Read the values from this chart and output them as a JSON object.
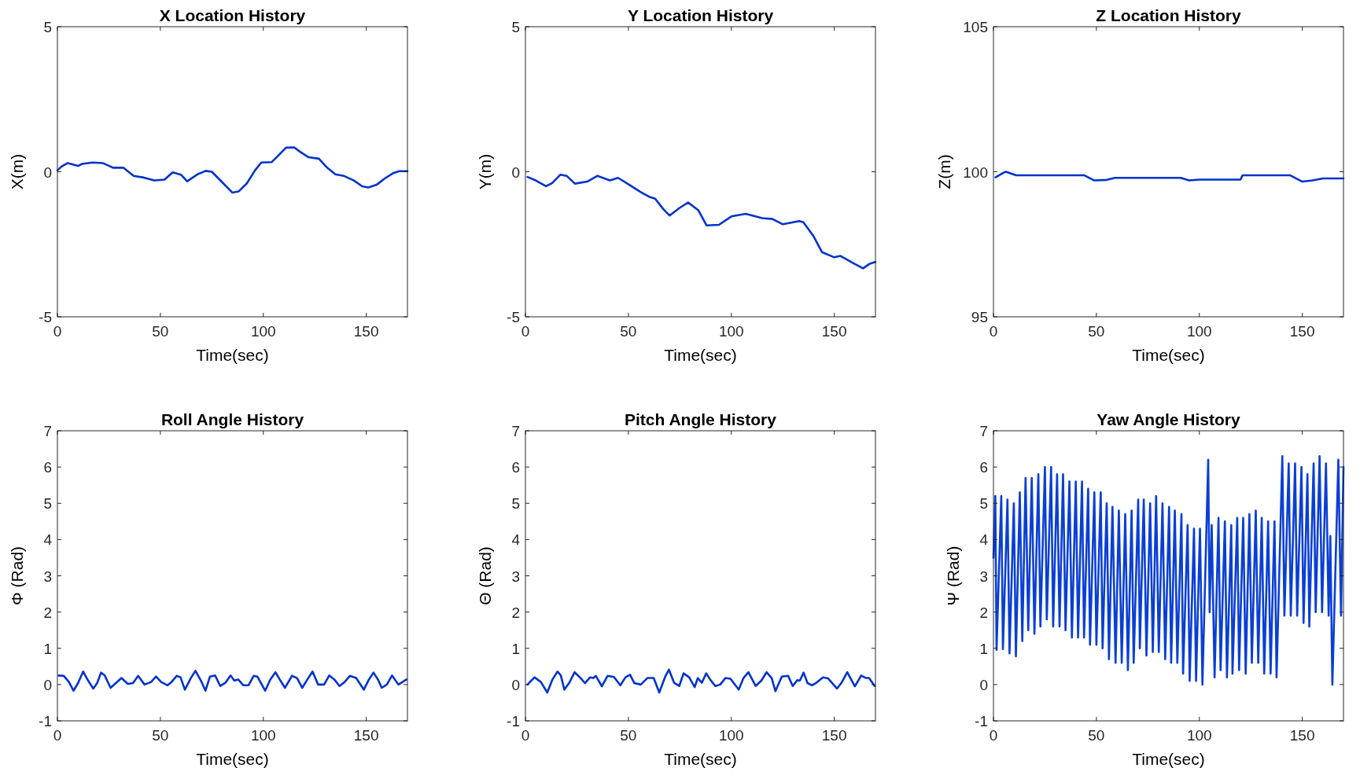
{
  "chart_data": [
    {
      "type": "line",
      "title": "X Location History",
      "xlabel": "Time(sec)",
      "ylabel": "X(m)",
      "xlim": [
        0,
        170
      ],
      "ylim": [
        -5,
        5
      ],
      "xticks": [
        0,
        50,
        100,
        150
      ],
      "yticks": [
        -5,
        0,
        5
      ],
      "series": [
        {
          "color": "#0033cc",
          "x": [
            0,
            2,
            5,
            10,
            12,
            17,
            22,
            27,
            32,
            37,
            42,
            47,
            52,
            56,
            60,
            63,
            68,
            72,
            75,
            80,
            85,
            88,
            92,
            96,
            99,
            104,
            107,
            111,
            115,
            118,
            122,
            127,
            131,
            135,
            139,
            144,
            148,
            151,
            155,
            159,
            163,
            166,
            170
          ],
          "values": [
            0.05,
            0.18,
            0.3,
            0.2,
            0.27,
            0.32,
            0.3,
            0.14,
            0.14,
            -0.14,
            -0.2,
            -0.3,
            -0.27,
            -0.02,
            -0.1,
            -0.33,
            -0.09,
            0.03,
            0,
            -0.36,
            -0.72,
            -0.68,
            -0.4,
            0.05,
            0.32,
            0.33,
            0.54,
            0.83,
            0.84,
            0.68,
            0.5,
            0.45,
            0.14,
            -0.09,
            -0.14,
            -0.3,
            -0.5,
            -0.54,
            -0.45,
            -0.23,
            -0.05,
            0.02,
            0.02
          ]
        }
      ]
    },
    {
      "type": "line",
      "title": "Y Location History",
      "xlabel": "Time(sec)",
      "ylabel": "Y(m)",
      "xlim": [
        0,
        170
      ],
      "ylim": [
        -5,
        5
      ],
      "xticks": [
        0,
        50,
        100,
        150
      ],
      "yticks": [
        -5,
        0,
        5
      ],
      "series": [
        {
          "color": "#0033cc",
          "x": [
            1,
            5,
            10,
            13,
            17,
            20,
            24,
            30,
            35,
            41,
            45,
            50,
            56,
            60,
            63,
            67,
            70,
            75,
            79,
            84,
            88,
            94,
            100,
            107,
            115,
            120,
            125,
            133,
            135,
            140,
            144,
            150,
            153,
            160,
            164,
            167,
            170
          ],
          "values": [
            -0.18,
            -0.3,
            -0.5,
            -0.39,
            -0.1,
            -0.14,
            -0.41,
            -0.34,
            -0.14,
            -0.3,
            -0.21,
            -0.43,
            -0.7,
            -0.86,
            -0.93,
            -1.29,
            -1.51,
            -1.24,
            -1.06,
            -1.33,
            -1.85,
            -1.83,
            -1.54,
            -1.45,
            -1.6,
            -1.63,
            -1.81,
            -1.7,
            -1.74,
            -2.23,
            -2.77,
            -2.95,
            -2.9,
            -3.18,
            -3.33,
            -3.18,
            -3.11
          ]
        }
      ]
    },
    {
      "type": "line",
      "title": "Z Location History",
      "xlabel": "Time(sec)",
      "ylabel": "Z(m)",
      "xlim": [
        0,
        170
      ],
      "ylim": [
        95,
        105
      ],
      "xticks": [
        0,
        50,
        100,
        150
      ],
      "yticks": [
        95,
        100,
        105
      ],
      "series": [
        {
          "color": "#0033cc",
          "x": [
            1,
            5,
            6,
            11,
            44,
            49,
            55,
            59,
            91,
            95,
            100,
            120,
            121,
            144,
            150,
            155,
            160,
            170
          ],
          "values": [
            99.81,
            99.97,
            100,
            99.88,
            99.88,
            99.7,
            99.72,
            99.79,
            99.79,
            99.7,
            99.73,
            99.73,
            99.88,
            99.88,
            99.66,
            99.7,
            99.77,
            99.77
          ]
        }
      ]
    },
    {
      "type": "line",
      "title": "Roll Angle History",
      "xlabel": "Time(sec)",
      "ylabel": "Φ (Rad)",
      "xlim": [
        0,
        170
      ],
      "ylim": [
        -1,
        7
      ],
      "xticks": [
        0,
        50,
        100,
        150
      ],
      "yticks": [
        -1,
        0,
        1,
        2,
        3,
        4,
        5,
        6,
        7
      ],
      "series": [
        {
          "color": "#0033cc",
          "x": [
            0.6,
            3.1,
            5.6,
            7.8,
            10,
            12.5,
            14.9,
            17.4,
            19.3,
            21.2,
            23,
            25.8,
            28.6,
            31.1,
            34.2,
            36.7,
            39.2,
            42.3,
            45.5,
            47.9,
            50.4,
            53.5,
            55.4,
            57.9,
            59.8,
            61.9,
            64.8,
            67,
            69.7,
            71.9,
            74.1,
            76.6,
            79.1,
            81.6,
            84.1,
            85.9,
            87.8,
            90.3,
            92.8,
            95.3,
            97.1,
            100.9,
            103.4,
            105.9,
            108.3,
            110.5,
            113.9,
            116.4,
            118.9,
            121.4,
            123.9,
            126.6,
            129.5,
            132,
            134.5,
            137,
            139.5,
            142,
            145.1,
            148.8,
            151.3,
            153.5,
            155.7,
            157.5,
            160,
            162.5,
            165.6,
            169.5
          ],
          "values": [
            0.25,
            0.24,
            0.07,
            -0.17,
            0.04,
            0.36,
            0.11,
            -0.11,
            0.04,
            0.33,
            0.25,
            -0.09,
            0.05,
            0.18,
            0.02,
            0.04,
            0.24,
            0,
            0.07,
            0.22,
            0.07,
            -0.02,
            0.07,
            0.24,
            0.2,
            -0.14,
            0.18,
            0.38,
            0.11,
            -0.17,
            0.22,
            0.25,
            -0.04,
            0.05,
            0.25,
            0.11,
            0.14,
            -0.02,
            -0.02,
            0.24,
            0.22,
            -0.17,
            0.14,
            0.34,
            0.11,
            -0.09,
            0.24,
            0.18,
            -0.09,
            0.14,
            0.36,
            0,
            0,
            0.25,
            0.14,
            -0.04,
            0.07,
            0.24,
            0.18,
            -0.14,
            0.14,
            0.33,
            0.14,
            -0.09,
            0,
            0.25,
            0,
            0.14
          ]
        }
      ]
    },
    {
      "type": "line",
      "title": "Pitch Angle History",
      "xlabel": "Time(sec)",
      "ylabel": "Θ (Rad)",
      "xlim": [
        0,
        170
      ],
      "ylim": [
        -1,
        7
      ],
      "xticks": [
        0,
        50,
        100,
        150
      ],
      "yticks": [
        -1,
        0,
        1,
        2,
        3,
        4,
        5,
        6,
        7
      ],
      "series": [
        {
          "color": "#0033cc",
          "x": [
            1,
            4.4,
            7.5,
            10.6,
            13.1,
            15.6,
            17.2,
            18.9,
            21.2,
            23.9,
            26.8,
            28.9,
            31.4,
            33,
            34.2,
            37.1,
            39.9,
            43,
            46.1,
            48.6,
            50.8,
            52.9,
            56,
            59.2,
            62.3,
            65,
            67.9,
            69.7,
            72.2,
            74.7,
            76.8,
            79.5,
            82.2,
            83.7,
            85.7,
            87.8,
            89.7,
            92.2,
            94.6,
            97.1,
            99.6,
            103.6,
            105.9,
            108.3,
            111.8,
            114.6,
            117.1,
            119.6,
            121.4,
            124.5,
            127.6,
            129.8,
            132,
            133.3,
            135.1,
            137,
            139.2,
            141.3,
            144.5,
            147,
            151.3,
            153.4,
            156.3,
            160,
            163.1,
            165.4,
            166.9,
            169.6
          ],
          "values": [
            0,
            0.2,
            0.07,
            -0.22,
            0.14,
            0.36,
            0.25,
            -0.14,
            0.04,
            0.34,
            0.18,
            0.04,
            0.2,
            0.18,
            0.24,
            -0.05,
            0.24,
            0.21,
            -0.02,
            0.2,
            0.27,
            0.04,
            0,
            0.18,
            0.18,
            -0.22,
            0.22,
            0.41,
            0.05,
            -0.04,
            0.31,
            0.2,
            -0.07,
            0.18,
            0.05,
            0.31,
            0.14,
            -0.04,
            0,
            0.18,
            0.16,
            -0.14,
            0.18,
            0.34,
            -0.04,
            0.11,
            0.34,
            0.18,
            -0.18,
            0.22,
            0.24,
            -0.04,
            0.12,
            0.11,
            0.33,
            0.04,
            -0.02,
            0.05,
            0.2,
            0.17,
            -0.11,
            0.04,
            0.34,
            -0.05,
            0.25,
            0.18,
            0.18,
            -0.04
          ]
        }
      ]
    },
    {
      "type": "line",
      "title": "Yaw Angle History",
      "xlabel": "Time(sec)",
      "ylabel": "Ψ (Rad)",
      "xlim": [
        0,
        170
      ],
      "ylim": [
        -1,
        7
      ],
      "xticks": [
        0,
        50,
        100,
        150
      ],
      "yticks": [
        -1,
        0,
        1,
        2,
        3,
        4,
        5,
        6,
        7
      ],
      "series": [
        {
          "color": "#0a3fd6",
          "x": [
            0,
            0.9,
            1.5,
            3.8,
            4.6,
            6.8,
            7.8,
            9.9,
            10.9,
            12.8,
            14,
            15.6,
            16.9,
            18.6,
            19.9,
            21.8,
            22.8,
            25,
            25.9,
            28,
            29,
            30.9,
            32.1,
            33.8,
            35,
            36.9,
            38.1,
            40,
            41.1,
            43,
            44,
            46,
            46.9,
            49,
            50,
            52.1,
            53,
            55,
            56.1,
            57.8,
            59.3,
            60.9,
            62.3,
            64,
            65.3,
            67.1,
            68.1,
            70.3,
            71.1,
            73,
            74.3,
            76.1,
            77.4,
            79,
            80.3,
            82.1,
            83.4,
            85.3,
            86.3,
            88.1,
            89.3,
            91.3,
            92.1,
            94.3,
            95.3,
            97.4,
            98.4,
            100.3,
            101.5,
            104.3,
            105,
            106,
            107.4,
            109.3,
            110.3,
            112.4,
            113.4,
            115.5,
            116.1,
            118.4,
            119.3,
            121.3,
            122.5,
            124.3,
            125.5,
            127.4,
            128.6,
            130.3,
            131.5,
            133.4,
            134.6,
            136.5,
            137.5,
            140.3,
            141.3,
            143.4,
            144.4,
            146.5,
            147.5,
            149.6,
            150.6,
            152.5,
            153.4,
            155.5,
            156.5,
            158.4,
            159.6,
            161.5,
            162.8,
            163.6,
            164.6,
            167.5,
            168.8,
            170
          ],
          "values": [
            3.5,
            5.2,
            0.96,
            5.2,
            0.98,
            5.1,
            0.86,
            5,
            0.78,
            5.3,
            1.2,
            5.7,
            1.5,
            5.7,
            1.4,
            5.8,
            1.6,
            6,
            1.8,
            6,
            1.6,
            5.8,
            1.6,
            5.8,
            1.5,
            5.6,
            1.3,
            5.6,
            1.3,
            5.6,
            1.3,
            5.4,
            1.1,
            5.3,
            1.1,
            5.3,
            1,
            5,
            0.7,
            4.9,
            0.6,
            4.8,
            0.6,
            4.7,
            0.4,
            4.8,
            0.6,
            5.1,
            1,
            5.1,
            0.8,
            5,
            0.9,
            5.2,
            0.9,
            5,
            0.7,
            4.9,
            0.6,
            4.8,
            0.6,
            4.7,
            0.3,
            4.4,
            0.1,
            4.3,
            0.1,
            4.3,
            0,
            6.2,
            2,
            4.4,
            0.2,
            4.6,
            0.4,
            4.5,
            0.2,
            4.4,
            0.3,
            4.6,
            0.4,
            4.6,
            0.3,
            4.7,
            0.6,
            4.8,
            0.6,
            4.6,
            0.3,
            4.5,
            0.3,
            4.5,
            0.2,
            6.3,
            1.9,
            6.1,
            1.9,
            6.1,
            1.9,
            6,
            1.7,
            5.8,
            1.6,
            6.1,
            2,
            6.3,
            2,
            6.1,
            1.9,
            4.1,
            0,
            6.2,
            1.9,
            6
          ]
        }
      ]
    }
  ]
}
